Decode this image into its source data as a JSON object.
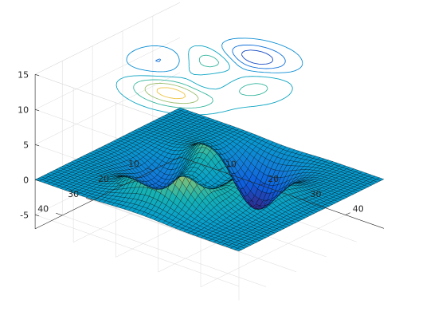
{
  "chart_data": {
    "type": "surface",
    "title": "",
    "function": "peaks",
    "grid_size": [
      49,
      49
    ],
    "x_ticks": [
      "10",
      "20",
      "30",
      "40"
    ],
    "y_ticks": [
      "10",
      "20",
      "30",
      "40"
    ],
    "z_ticks": [
      "-5",
      "0",
      "5",
      "10",
      "15"
    ],
    "xlim": [
      1,
      49
    ],
    "ylim": [
      1,
      49
    ],
    "zlim": [
      -7,
      15
    ],
    "contour_plane_z": 15,
    "contour_levels": [
      -5,
      -3,
      -1,
      1,
      3,
      5,
      7
    ],
    "z_range": [
      -6.55,
      8.1
    ],
    "colormap": "parula",
    "grid": true,
    "colors": {
      "mesh_edge": "#000000",
      "axis": "#262626",
      "grid": "#d9d9d9",
      "background": "#ffffff"
    }
  }
}
